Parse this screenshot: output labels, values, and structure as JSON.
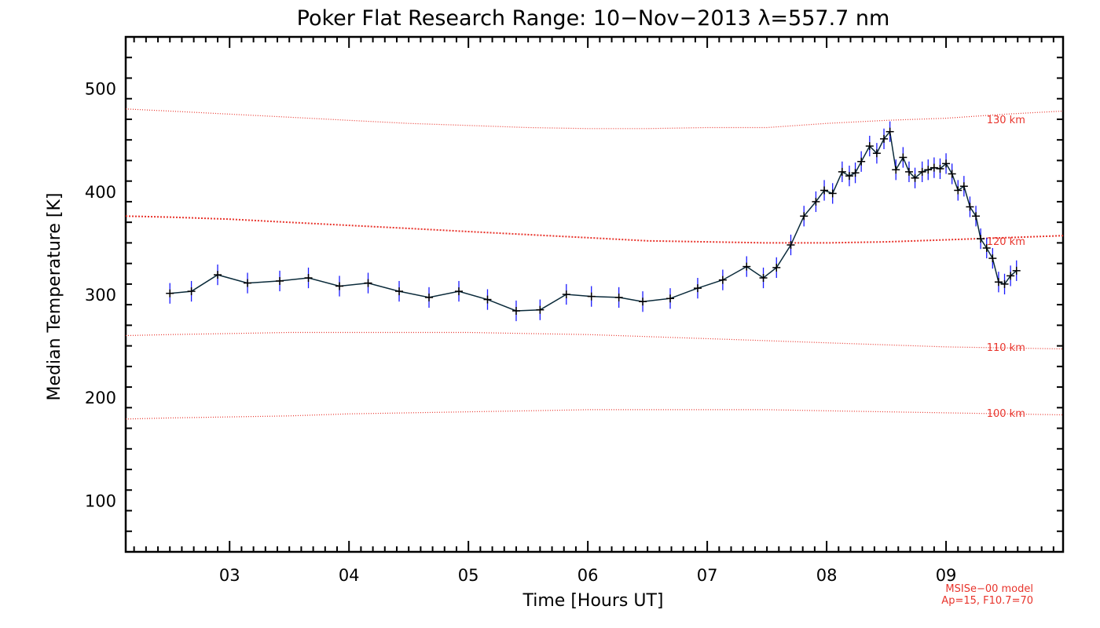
{
  "chart_data": {
    "type": "line",
    "title": "Poker Flat Research Range: 10−Nov−2013 λ=557.7 nm",
    "xlabel": "Time [Hours UT]",
    "ylabel": "Median Temperature [K]",
    "xlim": [
      2.13,
      9.98
    ],
    "ylim": [
      50,
      550
    ],
    "x_ticks": [
      {
        "value": 3,
        "label": "03"
      },
      {
        "value": 4,
        "label": "04"
      },
      {
        "value": 5,
        "label": "05"
      },
      {
        "value": 6,
        "label": "06"
      },
      {
        "value": 7,
        "label": "07"
      },
      {
        "value": 8,
        "label": "08"
      },
      {
        "value": 9,
        "label": "09"
      }
    ],
    "y_ticks": [
      {
        "value": 100,
        "label": "100"
      },
      {
        "value": 200,
        "label": "200"
      },
      {
        "value": 300,
        "label": "300"
      },
      {
        "value": 400,
        "label": "400"
      },
      {
        "value": 500,
        "label": "500"
      }
    ],
    "series": [
      {
        "name": "Median Temperature",
        "color": "#0a2a3a",
        "marker_color": "#000000",
        "errorbar_color": "#1a1aff",
        "error": 10,
        "x": [
          2.5,
          2.68,
          2.9,
          3.15,
          3.42,
          3.66,
          3.92,
          4.16,
          4.42,
          4.67,
          4.92,
          5.16,
          5.4,
          5.6,
          5.82,
          6.03,
          6.26,
          6.46,
          6.69,
          6.92,
          7.13,
          7.33,
          7.47,
          7.58,
          7.7,
          7.81,
          7.91,
          7.98,
          8.05,
          8.13,
          8.19,
          8.24,
          8.29,
          8.36,
          8.42,
          8.48,
          8.53,
          8.58,
          8.64,
          8.69,
          8.74,
          8.8,
          8.85,
          8.9,
          8.95,
          9.0,
          9.05,
          9.1,
          9.15,
          9.2,
          9.25,
          9.29,
          9.34,
          9.39,
          9.44,
          9.49,
          9.54,
          9.59
        ],
        "values": [
          301,
          303,
          319,
          311,
          313,
          316,
          308,
          311,
          303,
          297,
          303,
          295,
          284,
          285,
          300,
          298,
          297,
          293,
          296,
          306,
          314,
          327,
          316,
          326,
          348,
          376,
          390,
          401,
          398,
          419,
          415,
          418,
          429,
          444,
          437,
          451,
          458,
          421,
          433,
          419,
          413,
          419,
          421,
          423,
          422,
          427,
          417,
          401,
          405,
          385,
          376,
          354,
          345,
          335,
          312,
          310,
          318,
          323
        ]
      }
    ],
    "model_curves": [
      {
        "label": "130 km",
        "color": "#e8342c",
        "x": [
          2.13,
          2.5,
          3.0,
          3.5,
          4.0,
          4.5,
          5.0,
          5.5,
          6.0,
          6.5,
          7.0,
          7.5,
          8.0,
          8.5,
          9.0,
          9.5,
          9.98
        ],
        "values": [
          480,
          478,
          475,
          472,
          469,
          466,
          464,
          462,
          461,
          461,
          462,
          462,
          466,
          469,
          471,
          475,
          478
        ]
      },
      {
        "label": "120 km",
        "color": "#e8342c",
        "x": [
          2.13,
          2.5,
          3.0,
          3.5,
          4.0,
          4.5,
          5.0,
          5.5,
          6.0,
          6.5,
          7.0,
          7.5,
          8.0,
          8.5,
          9.0,
          9.5,
          9.98
        ],
        "values": [
          376,
          375,
          373,
          370,
          367,
          364,
          361,
          358,
          355,
          352,
          351,
          350,
          350,
          351,
          353,
          355,
          357
        ]
      },
      {
        "label": "110 km",
        "color": "#e8342c",
        "x": [
          2.13,
          2.5,
          3.0,
          3.5,
          4.0,
          4.5,
          5.0,
          5.5,
          6.0,
          6.5,
          7.0,
          7.5,
          8.0,
          8.5,
          9.0,
          9.5,
          9.98
        ],
        "values": [
          260,
          261,
          262,
          263,
          263,
          263,
          263,
          262,
          261,
          259,
          257,
          255,
          253,
          251,
          249,
          248,
          247
        ]
      },
      {
        "label": "100 km",
        "color": "#e8342c",
        "x": [
          2.13,
          2.5,
          3.0,
          3.5,
          4.0,
          4.5,
          5.0,
          5.5,
          6.0,
          6.5,
          7.0,
          7.5,
          8.0,
          8.5,
          9.0,
          9.5,
          9.98
        ],
        "values": [
          179,
          180,
          181,
          182,
          184,
          185,
          186,
          187,
          188,
          188,
          188,
          188,
          187,
          186,
          185,
          184,
          183
        ]
      }
    ],
    "model_label_values": [
      {
        "label": "130 km",
        "x": 9.34,
        "value": 466
      },
      {
        "label": "120 km",
        "x": 9.34,
        "value": 348
      },
      {
        "label": "110 km",
        "x": 9.34,
        "value": 245
      },
      {
        "label": "100 km",
        "x": 9.34,
        "value": 181
      }
    ],
    "annotation": {
      "line1": "MSISe−00 model",
      "line2": "Ap=15, F10.7=70"
    }
  }
}
